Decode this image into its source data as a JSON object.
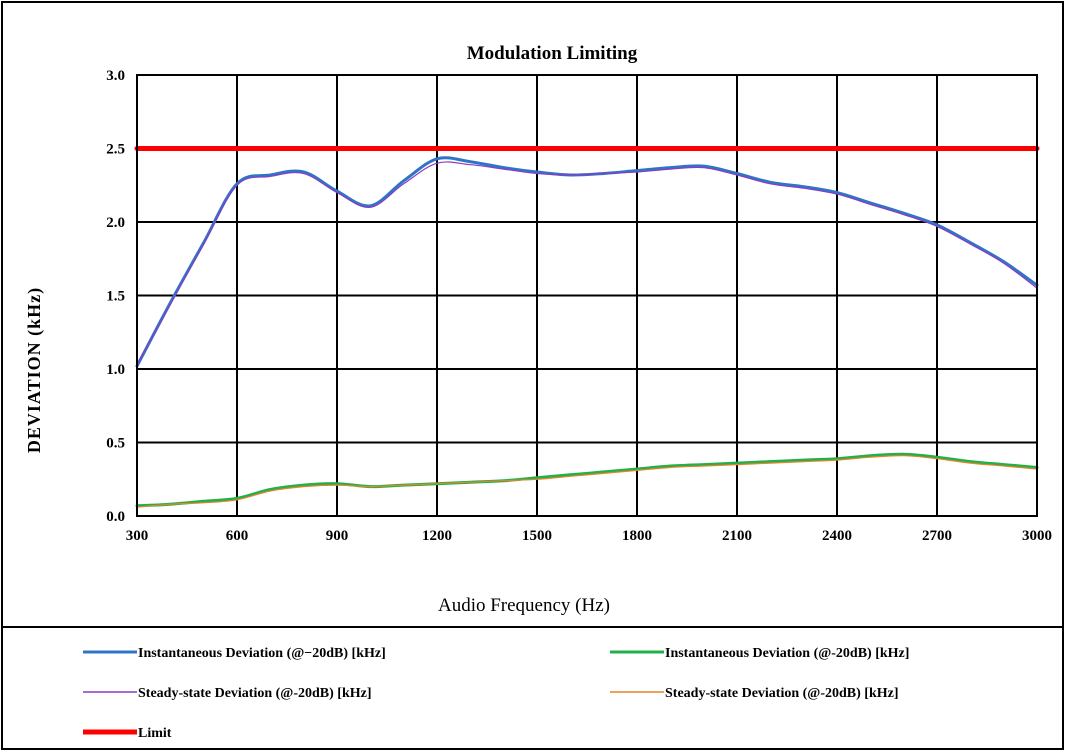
{
  "chart_data": {
    "type": "line",
    "title": "Modulation Limiting",
    "xlabel": "Audio Frequency (Hz)",
    "ylabel": "DEVIATION (kHz)",
    "xlim": [
      300,
      3000
    ],
    "ylim": [
      0.0,
      3.0
    ],
    "grid": true,
    "legend_position": "bottom",
    "x_ticks": [
      "300",
      "600",
      "900",
      "1200",
      "1500",
      "1800",
      "2100",
      "2400",
      "2700",
      "3000"
    ],
    "y_ticks": [
      "0.0",
      "0.5",
      "1.0",
      "1.5",
      "2.0",
      "2.5",
      "3.0"
    ],
    "x": [
      300,
      400,
      500,
      600,
      700,
      800,
      900,
      1000,
      1100,
      1200,
      1300,
      1400,
      1500,
      1600,
      1700,
      1800,
      1900,
      2000,
      2100,
      2200,
      2300,
      2400,
      2500,
      2600,
      2700,
      2800,
      2900,
      3000
    ],
    "series": [
      {
        "name": "Instantaneous Deviation (@−20dB) [kHz]",
        "color": "#2e75c6",
        "values": [
          1.02,
          1.45,
          1.86,
          2.26,
          2.32,
          2.34,
          2.21,
          2.11,
          2.28,
          2.43,
          2.41,
          2.37,
          2.34,
          2.32,
          2.33,
          2.35,
          2.37,
          2.38,
          2.33,
          2.27,
          2.24,
          2.2,
          2.13,
          2.06,
          1.98,
          1.86,
          1.73,
          1.57
        ]
      },
      {
        "name": "Instantaneous Deviation (@-20dB) [kHz]",
        "color": "#22b04b",
        "values": [
          0.07,
          0.08,
          0.1,
          0.12,
          0.18,
          0.21,
          0.22,
          0.2,
          0.21,
          0.22,
          0.23,
          0.24,
          0.26,
          0.28,
          0.3,
          0.32,
          0.34,
          0.35,
          0.36,
          0.37,
          0.38,
          0.39,
          0.41,
          0.42,
          0.4,
          0.37,
          0.35,
          0.33
        ]
      },
      {
        "name": "Steady-state Deviation (@-20dB) [kHz]",
        "color": "#8a3cc4",
        "values": [
          1.03,
          1.44,
          1.85,
          2.25,
          2.31,
          2.33,
          2.2,
          2.1,
          2.26,
          2.4,
          2.39,
          2.36,
          2.33,
          2.32,
          2.33,
          2.34,
          2.36,
          2.37,
          2.32,
          2.26,
          2.23,
          2.19,
          2.12,
          2.05,
          1.97,
          1.85,
          1.72,
          1.55
        ]
      },
      {
        "name": "Steady-state Deviation (@-20dB) [kHz]",
        "color": "#e8832a",
        "values": [
          0.06,
          0.08,
          0.09,
          0.11,
          0.17,
          0.2,
          0.21,
          0.2,
          0.21,
          0.22,
          0.23,
          0.24,
          0.25,
          0.27,
          0.29,
          0.31,
          0.33,
          0.34,
          0.35,
          0.36,
          0.37,
          0.38,
          0.4,
          0.41,
          0.39,
          0.36,
          0.34,
          0.32
        ]
      },
      {
        "name": "Limit",
        "color": "#ff0000",
        "values": [
          2.5,
          2.5,
          2.5,
          2.5,
          2.5,
          2.5,
          2.5,
          2.5,
          2.5,
          2.5,
          2.5,
          2.5,
          2.5,
          2.5,
          2.5,
          2.5,
          2.5,
          2.5,
          2.5,
          2.5,
          2.5,
          2.5,
          2.5,
          2.5,
          2.5,
          2.5,
          2.5,
          2.5
        ]
      }
    ]
  }
}
